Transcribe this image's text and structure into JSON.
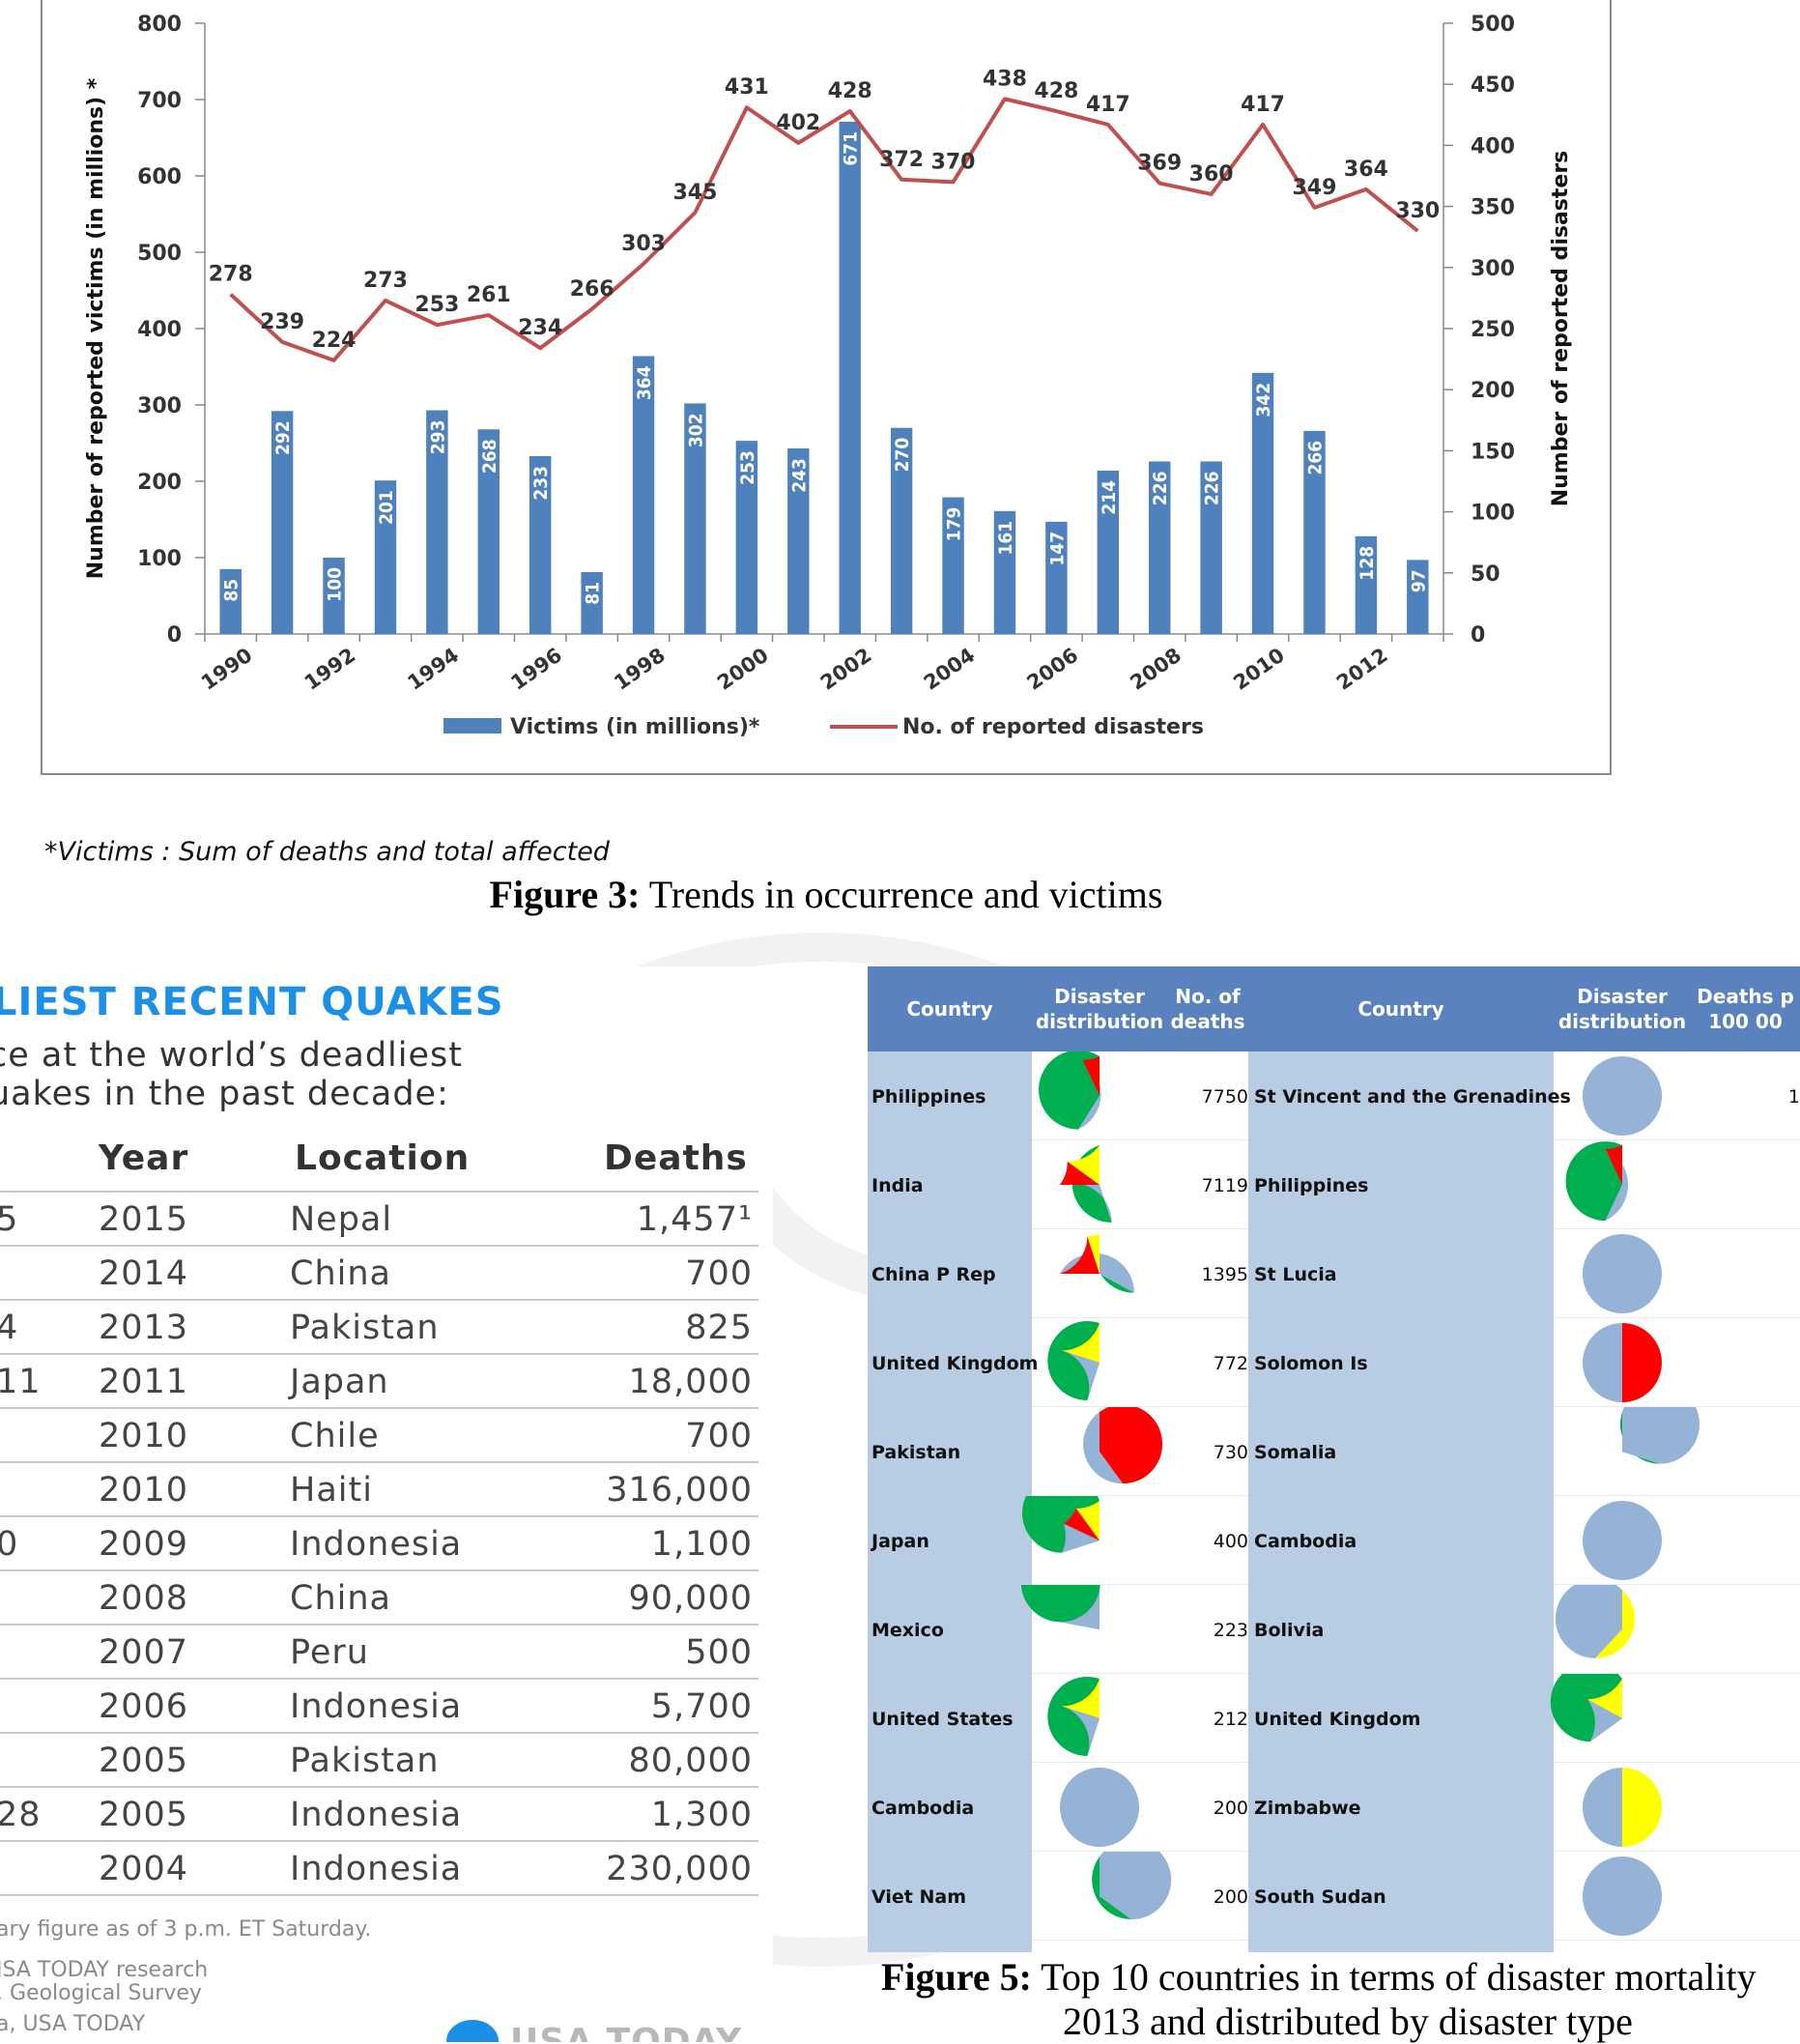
{
  "figure3": {
    "caption_label": "Figure 3:",
    "caption_text": " Trends in occurrence and victims",
    "footnote": "*Victims : Sum of deaths and total affected",
    "chart_data": {
      "type": "bar+line",
      "years": [
        1990,
        1991,
        1992,
        1993,
        1994,
        1995,
        1996,
        1997,
        1998,
        1999,
        2000,
        2001,
        2002,
        2003,
        2004,
        2005,
        2006,
        2007,
        2008,
        2009,
        2010,
        2011,
        2012,
        2013
      ],
      "x_tick_labels": [
        "1990",
        "1992",
        "1994",
        "1996",
        "1998",
        "2000",
        "2002",
        "2004",
        "2006",
        "2008",
        "2010",
        "2012"
      ],
      "series": [
        {
          "name": "Victims (in millions)*",
          "type": "bar",
          "axis": "left",
          "color": "#4f81bd",
          "values": [
            85,
            292,
            100,
            201,
            293,
            268,
            233,
            81,
            364,
            302,
            253,
            243,
            671,
            270,
            179,
            161,
            147,
            214,
            226,
            226,
            342,
            266,
            128,
            97
          ]
        },
        {
          "name": "No. of reported disasters",
          "type": "line",
          "axis": "right",
          "color": "#c0504d",
          "values": [
            278,
            239,
            224,
            273,
            253,
            261,
            234,
            266,
            303,
            345,
            431,
            402,
            428,
            372,
            370,
            438,
            428,
            417,
            369,
            360,
            417,
            349,
            364,
            330
          ]
        }
      ],
      "ylabel_left": "Number of reported victims (in millions) *",
      "ylabel_right": "Number of reported disasters",
      "ylim_left": [
        0,
        800
      ],
      "ylim_right": [
        0,
        500
      ],
      "yticks_left": [
        "0",
        "100",
        "200",
        "300",
        "400",
        "500",
        "600",
        "700",
        "800"
      ],
      "yticks_right": [
        "0",
        "50",
        "100",
        "150",
        "200",
        "250",
        "300",
        "350",
        "400",
        "450",
        "500"
      ],
      "legend_position": "bottom",
      "grid": false
    }
  },
  "quakes": {
    "title": "LIEST RECENT QUAKES",
    "subtitle_line1": "ce at the world’s deadliest",
    "subtitle_line2": "uakes in the past decade:",
    "headers": {
      "year": "Year",
      "location": "Location",
      "deaths": "Deaths"
    },
    "rows": [
      {
        "lead": "5",
        "year": "2015",
        "location": "Nepal",
        "deaths": "1,457¹"
      },
      {
        "lead": "",
        "year": "2014",
        "location": "China",
        "deaths": "700"
      },
      {
        "lead": "4",
        "year": "2013",
        "location": "Pakistan",
        "deaths": "825"
      },
      {
        "lead": "11",
        "year": "2011",
        "location": "Japan",
        "deaths": "18,000"
      },
      {
        "lead": "",
        "year": "2010",
        "location": "Chile",
        "deaths": "700"
      },
      {
        "lead": "",
        "year": "2010",
        "location": "Haiti",
        "deaths": "316,000"
      },
      {
        "lead": "0",
        "year": "2009",
        "location": "Indonesia",
        "deaths": "1,100"
      },
      {
        "lead": "",
        "year": "2008",
        "location": "China",
        "deaths": "90,000"
      },
      {
        "lead": "",
        "year": "2007",
        "location": "Peru",
        "deaths": "500"
      },
      {
        "lead": "",
        "year": "2006",
        "location": "Indonesia",
        "deaths": "5,700"
      },
      {
        "lead": "",
        "year": "2005",
        "location": "Pakistan",
        "deaths": "80,000"
      },
      {
        "lead": "28",
        "year": "2005",
        "location": "Indonesia",
        "deaths": "1,300"
      },
      {
        "lead": "",
        "year": "2004",
        "location": "Indonesia",
        "deaths": "230,000"
      }
    ],
    "footnote": "ary figure as of 3 p.m. ET Saturday.",
    "source_line1": "JSA TODAY research",
    "source_line2": ". Geological Survey",
    "source_line3": "a, USA TODAY",
    "logo_text": "USA TODAY"
  },
  "mortality": {
    "headers": {
      "country": "Country",
      "dist_1": "Disaster",
      "dist_2": "distribution",
      "deaths_1": "No. of",
      "deaths_2": "deaths",
      "per_1": "Deaths p",
      "per_2": "100 00"
    },
    "colors": {
      "header": "#5a82bf",
      "cell": "#b8cce4",
      "green": "#00b050",
      "red": "#ff0000",
      "yellow": "#ffff00",
      "blue": "#95b3d7"
    },
    "rows": [
      {
        "left_country": "Philippines",
        "left_pie": [
          [
            "green",
            0.59
          ],
          [
            "blue",
            0.34
          ],
          [
            "red",
            0.07
          ]
        ],
        "deaths": "7750",
        "right_country": "St Vincent and the Grenadines",
        "right_pie": [
          [
            "blue",
            1.0
          ]
        ],
        "right_value": "1"
      },
      {
        "left_country": "India",
        "left_pie": [
          [
            "green",
            0.45
          ],
          [
            "blue",
            0.3
          ],
          [
            "red",
            0.1
          ],
          [
            "yellow",
            0.15
          ]
        ],
        "deaths": "7119",
        "right_country": "Philippines",
        "right_pie": [
          [
            "green",
            0.57
          ],
          [
            "blue",
            0.36
          ],
          [
            "red",
            0.07
          ]
        ],
        "right_value": ""
      },
      {
        "left_country": "China P Rep",
        "left_pie": [
          [
            "green",
            0.33
          ],
          [
            "blue",
            0.42
          ],
          [
            "red",
            0.2
          ],
          [
            "yellow",
            0.05
          ]
        ],
        "deaths": "1395",
        "right_country": "St Lucia",
        "right_pie": [
          [
            "blue",
            1.0
          ]
        ],
        "right_value": ""
      },
      {
        "left_country": "United Kingdom",
        "left_pie": [
          [
            "green",
            0.55
          ],
          [
            "blue",
            0.25
          ],
          [
            "yellow",
            0.2
          ]
        ],
        "deaths": "772",
        "right_country": "Solomon Is",
        "right_pie": [
          [
            "blue",
            0.5
          ],
          [
            "red",
            0.5
          ]
        ],
        "right_value": ""
      },
      {
        "left_country": "Pakistan",
        "left_pie": [
          [
            "blue",
            0.4
          ],
          [
            "red",
            0.6
          ]
        ],
        "deaths": "730",
        "right_country": "Somalia",
        "right_pie": [
          [
            "green",
            0.3
          ],
          [
            "blue",
            0.7
          ]
        ],
        "right_value": ""
      },
      {
        "left_country": "Japan",
        "left_pie": [
          [
            "green",
            0.7
          ],
          [
            "blue",
            0.12
          ],
          [
            "red",
            0.08
          ],
          [
            "yellow",
            0.1
          ]
        ],
        "deaths": "400",
        "right_country": "Cambodia",
        "right_pie": [
          [
            "blue",
            1.0
          ]
        ],
        "right_value": ""
      },
      {
        "left_country": "Mexico",
        "left_pie": [
          [
            "green",
            0.78
          ],
          [
            "blue",
            0.22
          ]
        ],
        "deaths": "223",
        "right_country": "Bolivia",
        "right_pie": [
          [
            "blue",
            0.62
          ],
          [
            "yellow",
            0.38
          ]
        ],
        "right_value": ""
      },
      {
        "left_country": "United States",
        "left_pie": [
          [
            "green",
            0.55
          ],
          [
            "blue",
            0.25
          ],
          [
            "yellow",
            0.2
          ]
        ],
        "deaths": "212",
        "right_country": "United Kingdom",
        "right_pie": [
          [
            "green",
            0.65
          ],
          [
            "blue",
            0.18
          ],
          [
            "yellow",
            0.17
          ]
        ],
        "right_value": ""
      },
      {
        "left_country": "Cambodia",
        "left_pie": [
          [
            "blue",
            1.0
          ]
        ],
        "deaths": "200",
        "right_country": "Zimbabwe",
        "right_pie": [
          [
            "blue",
            0.5
          ],
          [
            "yellow",
            0.5
          ]
        ],
        "right_value": ""
      },
      {
        "left_country": "Viet Nam",
        "left_pie": [
          [
            "green",
            0.35
          ],
          [
            "blue",
            0.65
          ]
        ],
        "deaths": "200",
        "right_country": "South Sudan",
        "right_pie": [
          [
            "blue",
            1.0
          ]
        ],
        "right_value": ""
      }
    ],
    "caption_label": "Figure 5:",
    "caption_text": " Top 10 countries in terms of disaster mortality",
    "caption_line2": "2013 and distributed by disaster type"
  }
}
